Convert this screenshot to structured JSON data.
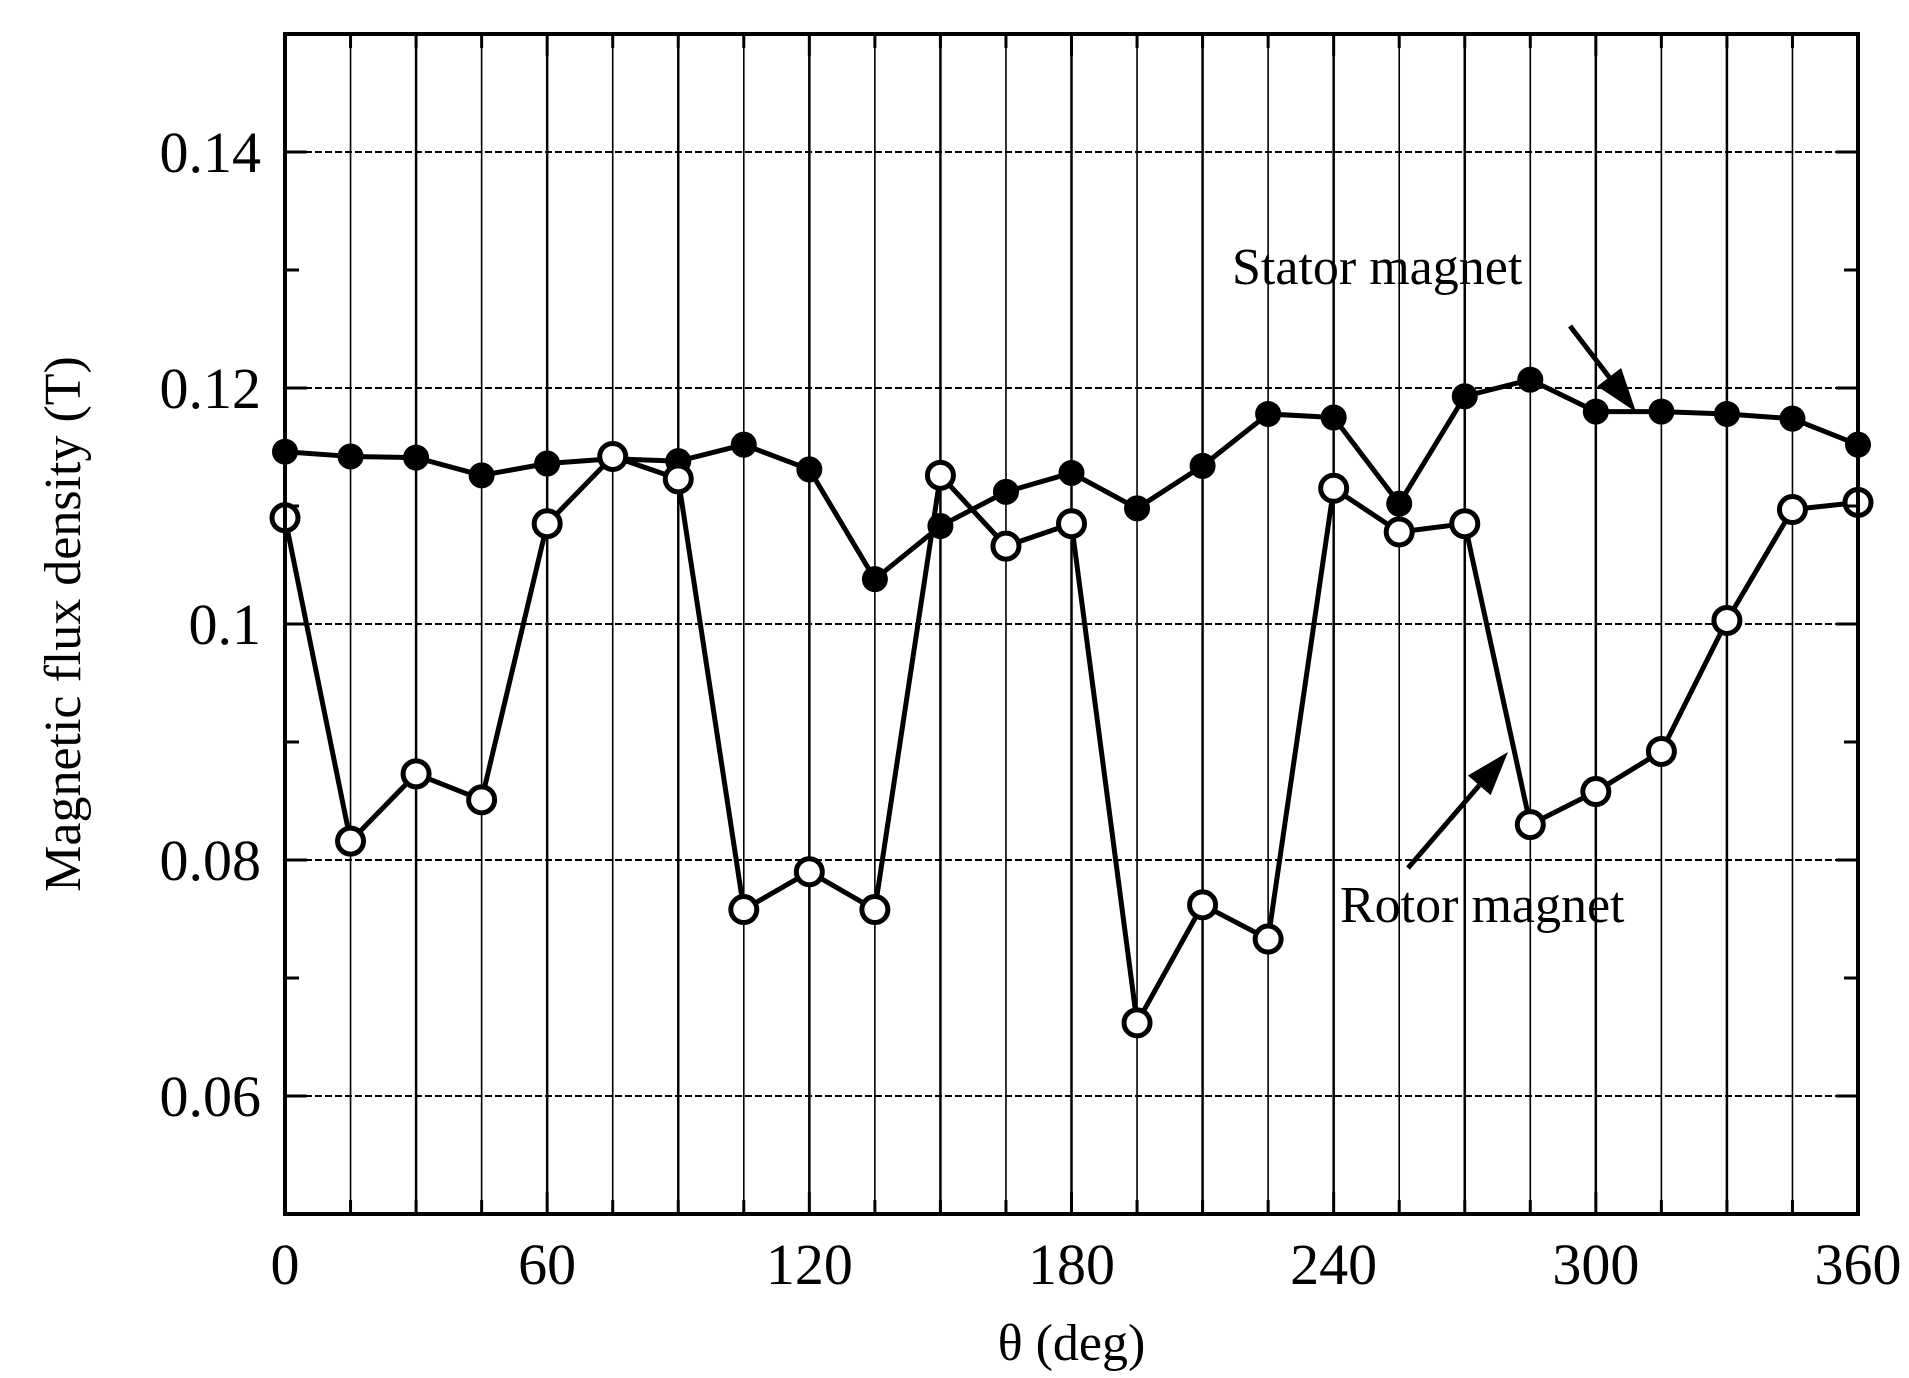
{
  "chart_data": {
    "type": "line",
    "xlabel": "θ  (deg)",
    "ylabel": "Magnetic flux density (T)",
    "xlim": [
      0,
      360
    ],
    "ylim": [
      0.05,
      0.15
    ],
    "xticks": [
      0,
      60,
      120,
      180,
      240,
      300,
      360
    ],
    "xtick_labels": [
      "0",
      "60",
      "120",
      "180",
      "240",
      "300",
      "360"
    ],
    "yticks": [
      0.06,
      0.08,
      0.1,
      0.12,
      0.14
    ],
    "ytick_labels": [
      "0.06",
      "0.08",
      "0.1",
      "0.12",
      "0.14"
    ],
    "grid": true,
    "annotations": [
      {
        "text": "Stator magnet",
        "points_to_series": 0
      },
      {
        "text": "Rotor magnet",
        "points_to_series": 1
      }
    ],
    "series": [
      {
        "marker": "filled-circle",
        "x": [
          0,
          15,
          30,
          45,
          60,
          75,
          90,
          105,
          120,
          135,
          150,
          165,
          180,
          195,
          210,
          225,
          240,
          255,
          270,
          285,
          300,
          315,
          330,
          345,
          360
        ],
        "y": [
          0.1146,
          0.1142,
          0.1141,
          0.1126,
          0.1136,
          0.114,
          0.1138,
          0.1152,
          0.1131,
          0.1038,
          0.1083,
          0.1112,
          0.1128,
          0.1098,
          0.1134,
          0.1178,
          0.1175,
          0.1102,
          0.1193,
          0.1207,
          0.118,
          0.118,
          0.1178,
          0.1174,
          0.1152
        ]
      },
      {
        "marker": "open-circle",
        "x": [
          0,
          15,
          30,
          45,
          60,
          75,
          90,
          105,
          120,
          135,
          150,
          165,
          180,
          195,
          210,
          225,
          240,
          255,
          270,
          285,
          300,
          315,
          330,
          345,
          360
        ],
        "y": [
          0.109,
          0.0816,
          0.0873,
          0.0851,
          0.1085,
          0.1142,
          0.1123,
          0.0758,
          0.079,
          0.0758,
          0.1126,
          0.1066,
          0.1085,
          0.0662,
          0.0762,
          0.0733,
          0.1115,
          0.1078,
          0.1085,
          0.083,
          0.0858,
          0.0892,
          0.1003,
          0.1097,
          0.1103
        ]
      }
    ]
  }
}
